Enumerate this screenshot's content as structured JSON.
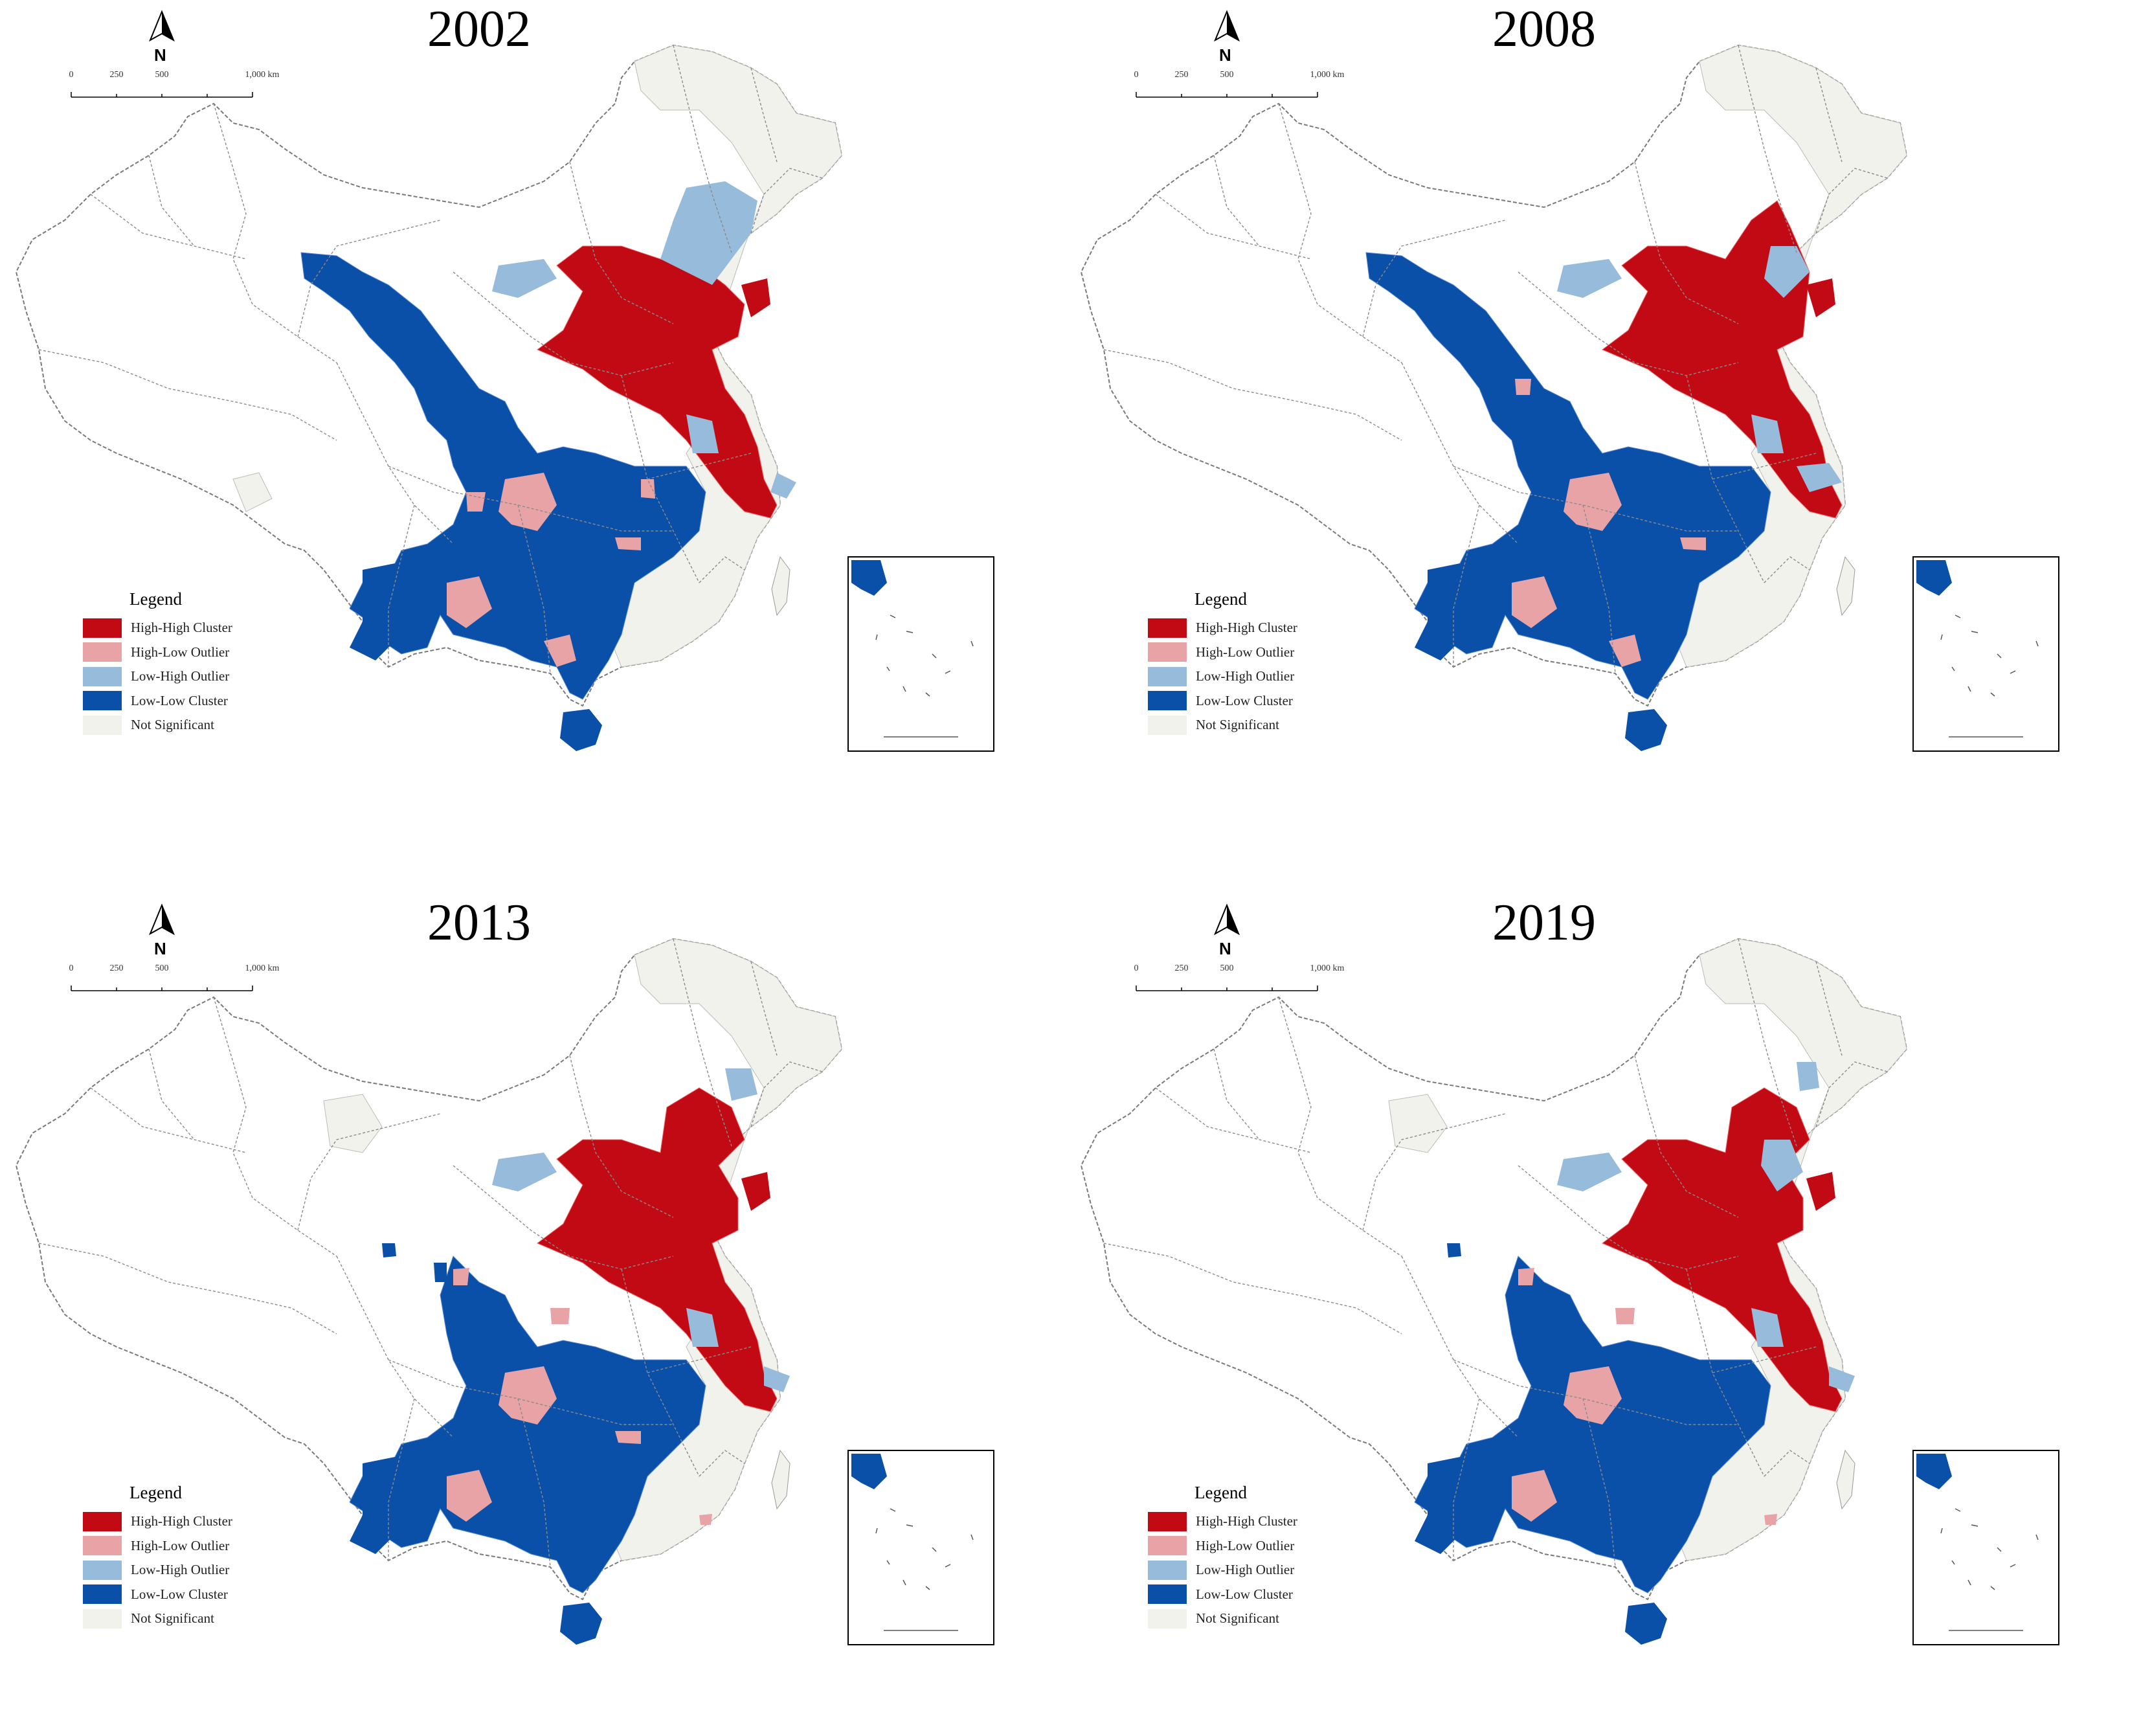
{
  "figure": {
    "panels": [
      {
        "year": "2002",
        "scale": {
          "ticks": [
            "0",
            "250",
            "500"
          ],
          "end": "1,000 km"
        },
        "north": "N",
        "legend": {
          "title": "Legend",
          "items": [
            {
              "label": "High-High Cluster",
              "color": "#c20a14"
            },
            {
              "label": "High-Low Outlier",
              "color": "#e8a3a7"
            },
            {
              "label": "Low-High Outlier",
              "color": "#97bbdb"
            },
            {
              "label": "Low-Low Cluster",
              "color": "#0a4fa8"
            },
            {
              "label": "Not Significant",
              "color": "#f2f2ec"
            }
          ]
        }
      },
      {
        "year": "2008",
        "scale": {
          "ticks": [
            "0",
            "250",
            "500"
          ],
          "end": "1,000 km"
        },
        "north": "N",
        "legend": {
          "title": "Legend",
          "items": [
            {
              "label": "High-High Cluster",
              "color": "#c20a14"
            },
            {
              "label": "High-Low Outlier",
              "color": "#e8a3a7"
            },
            {
              "label": "Low-High Outlier",
              "color": "#97bbdb"
            },
            {
              "label": "Low-Low Cluster",
              "color": "#0a4fa8"
            },
            {
              "label": "Not Significant",
              "color": "#f2f2ec"
            }
          ]
        }
      },
      {
        "year": "2013",
        "scale": {
          "ticks": [
            "0",
            "250",
            "500"
          ],
          "end": "1,000 km"
        },
        "north": "N",
        "legend": {
          "title": "Legend",
          "items": [
            {
              "label": "High-High Cluster",
              "color": "#c20a14"
            },
            {
              "label": "High-Low Outlier",
              "color": "#e8a3a7"
            },
            {
              "label": "Low-High Outlier",
              "color": "#97bbdb"
            },
            {
              "label": "Low-Low Cluster",
              "color": "#0a4fa8"
            },
            {
              "label": "Not Significant",
              "color": "#f2f2ec"
            }
          ]
        }
      },
      {
        "year": "2019",
        "scale": {
          "ticks": [
            "0",
            "250",
            "500"
          ],
          "end": "1,000 km"
        },
        "north": "N",
        "legend": {
          "title": "Legend",
          "items": [
            {
              "label": "High-High Cluster",
              "color": "#c20a14"
            },
            {
              "label": "High-Low Outlier",
              "color": "#e8a3a7"
            },
            {
              "label": "Low-High Outlier",
              "color": "#97bbdb"
            },
            {
              "label": "Low-Low Cluster",
              "color": "#0a4fa8"
            },
            {
              "label": "Not Significant",
              "color": "#f2f2ec"
            }
          ]
        }
      }
    ]
  }
}
